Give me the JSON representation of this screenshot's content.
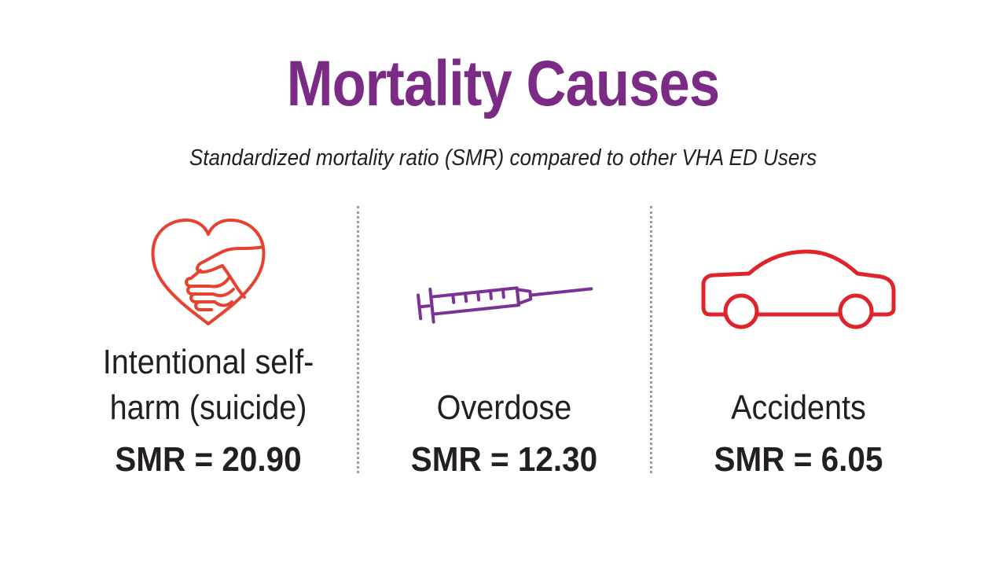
{
  "title": "Mortality Causes",
  "subtitle": "Standardized mortality ratio (SMR) compared to other VHA ED Users",
  "colors": {
    "title": "#7b2a85",
    "heart_icon": "#e8412f",
    "syringe_icon": "#7b3296",
    "car_icon": "#e0232b",
    "divider": "#9a9a9a"
  },
  "causes": [
    {
      "icon": "heart-handshake-icon",
      "label_line1": "Intentional self-",
      "label_line2": "harm (suicide)",
      "smr": "SMR = 20.90"
    },
    {
      "icon": "syringe-icon",
      "label": "Overdose",
      "smr": "SMR = 12.30"
    },
    {
      "icon": "car-icon",
      "label": "Accidents",
      "smr": "SMR = 6.05"
    }
  ]
}
